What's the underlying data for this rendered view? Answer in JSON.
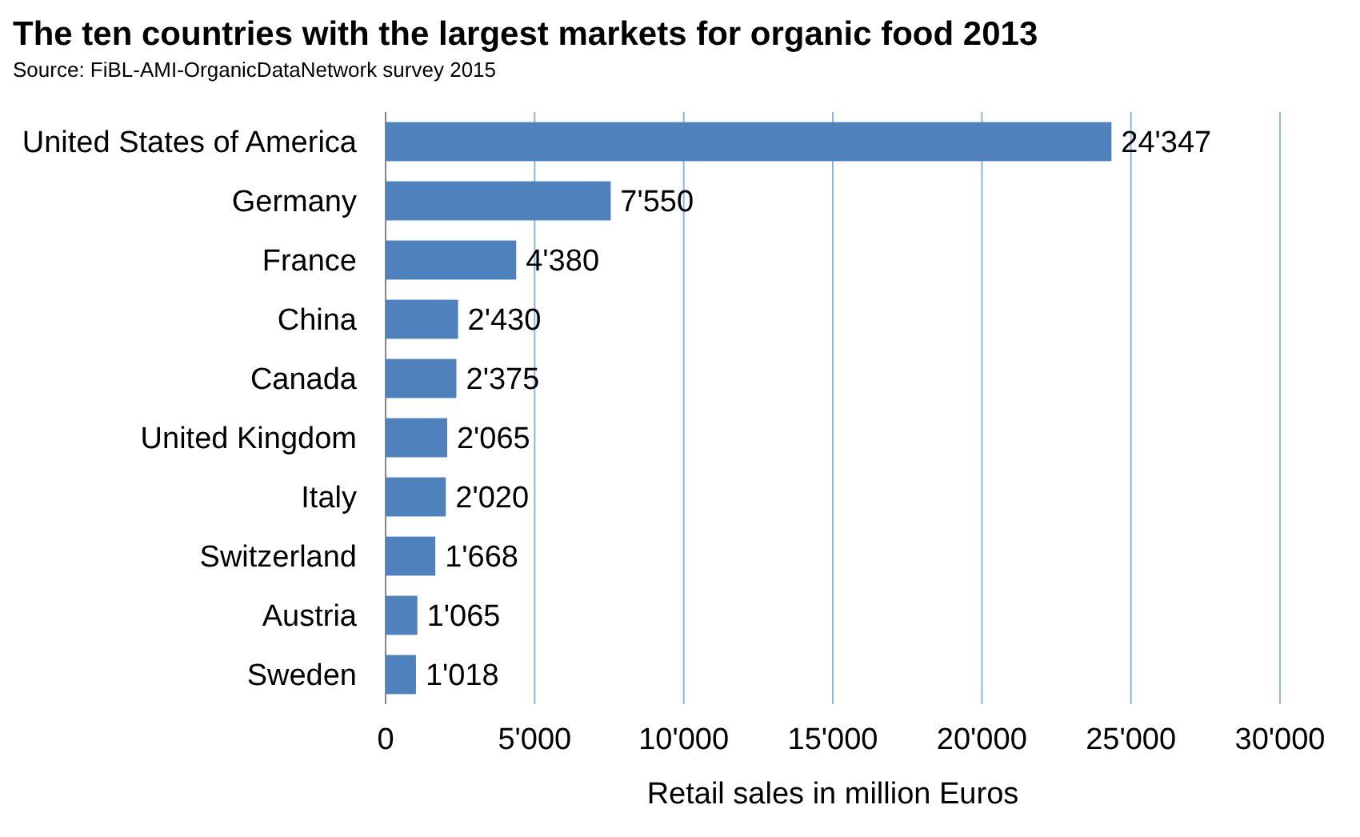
{
  "chart_data": {
    "type": "bar",
    "orientation": "horizontal",
    "title": "The ten countries with the largest markets for organic food  2013",
    "subtitle": "Source: FiBL-AMI-OrganicDataNetwork survey 2015",
    "xlabel": "Retail sales in million Euros",
    "categories": [
      "United States of America",
      "Germany",
      "France",
      "China",
      "Canada",
      "United Kingdom",
      "Italy",
      "Switzerland",
      "Austria",
      "Sweden"
    ],
    "values": [
      24347,
      7550,
      4380,
      2430,
      2375,
      2065,
      2020,
      1668,
      1065,
      1018
    ],
    "value_labels": [
      "24'347",
      "7'550",
      "4'380",
      "2'430",
      "2'375",
      "2'065",
      "2'020",
      "1'668",
      "1'065",
      "1'018"
    ],
    "color": "#4f81bd",
    "xlim": [
      0,
      30000
    ],
    "xticks": [
      0,
      {
        "value": 5000,
        "label": "5'000"
      },
      {
        "value": 10000,
        "label": "10'000"
      },
      {
        "value": 15000,
        "label": "15'000"
      },
      {
        "value": 20000,
        "label": "20'000"
      },
      {
        "value": 25000,
        "label": "25'000"
      },
      {
        "value": 30000,
        "label": "30'000"
      }
    ],
    "grid": "x"
  }
}
